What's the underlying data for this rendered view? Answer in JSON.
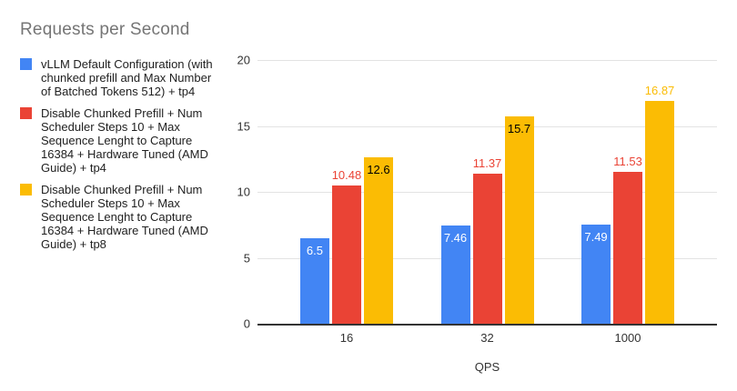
{
  "chart": {
    "title": "Requests per Second",
    "xlabel": "QPS"
  },
  "chart_data": {
    "type": "bar",
    "title": "Requests per Second",
    "xlabel": "QPS",
    "ylabel": "",
    "categories": [
      "16",
      "32",
      "1000"
    ],
    "y_ticks": [
      0,
      5,
      10,
      15,
      20
    ],
    "ylim": [
      0,
      20
    ],
    "grid": true,
    "legend_position": "left",
    "series": [
      {
        "name": "vLLM Default Configuration (with chunked prefill and Max Number of Batched Tokens 512) + tp4",
        "color": "#4285f4",
        "values": [
          6.5,
          7.46,
          7.49
        ],
        "labels": [
          "6.5",
          "7.46",
          "7.49"
        ],
        "label_positions": [
          "inside",
          "inside",
          "inside"
        ],
        "label_colors": [
          "#ffffff",
          "#ffffff",
          "#ffffff"
        ]
      },
      {
        "name": "Disable Chunked Prefill + Num Scheduler Steps 10 + Max Sequence Lenght to Capture 16384 + Hardware Tuned (AMD Guide) + tp4",
        "color": "#ea4335",
        "values": [
          10.48,
          11.37,
          11.53
        ],
        "labels": [
          "10.48",
          "11.37",
          "11.53"
        ],
        "label_positions": [
          "above",
          "above",
          "above"
        ],
        "label_colors": [
          "#ea4335",
          "#ea4335",
          "#ea4335"
        ]
      },
      {
        "name": "Disable Chunked Prefill + Num Scheduler Steps 10 + Max Sequence Lenght to Capture 16384 + Hardware Tuned (AMD Guide) + tp8",
        "color": "#fbbc04",
        "values": [
          12.6,
          15.7,
          16.87
        ],
        "labels": [
          "12.6",
          "15.7",
          "16.87"
        ],
        "label_positions": [
          "inside",
          "inside",
          "above"
        ],
        "label_colors": [
          "#000000",
          "#000000",
          "#fbbc04"
        ]
      }
    ],
    "group_center_fractions": [
      0.194,
      0.5,
      0.806
    ]
  }
}
